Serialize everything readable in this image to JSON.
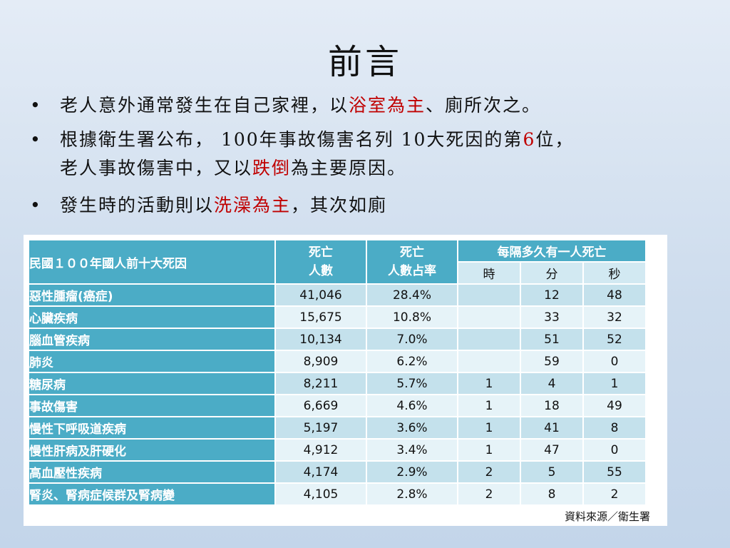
{
  "title": "前言",
  "bullets": {
    "bullet_symbol": "•",
    "b1": {
      "pre": "老人意外通常發生在自己家裡，以",
      "hl": "浴室為主",
      "post": "、廁所次之。"
    },
    "b2": {
      "pre": "根據衛生署公布， 100年事故傷害名列 10大死因的第",
      "hl": "6",
      "mid": "位，",
      "line2_pre": "老人事故傷害中，又以",
      "hl2": "跌倒",
      "post": "為主要原因。"
    },
    "b3": {
      "pre": "發生時的活動則以",
      "hl": "洗澡為主",
      "post": "，其次如廁"
    }
  },
  "table": {
    "header": {
      "cause": "民國１００年國人前十大死因",
      "deaths_line1": "死亡",
      "deaths_line2": "人數",
      "share_line1": "死亡",
      "share_line2": "人數占率",
      "interval": "每隔多久有一人死亡",
      "hour": "時",
      "minute": "分",
      "second": "秒"
    },
    "rows": [
      {
        "cause": "惡性腫瘤(癌症)",
        "deaths": "41,046",
        "share": "28.4%",
        "h": "",
        "m": "12",
        "s": "48"
      },
      {
        "cause": "心臟疾病",
        "deaths": "15,675",
        "share": "10.8%",
        "h": "",
        "m": "33",
        "s": "32"
      },
      {
        "cause": "腦血管疾病",
        "deaths": "10,134",
        "share": "7.0%",
        "h": "",
        "m": "51",
        "s": "52"
      },
      {
        "cause": "肺炎",
        "deaths": "8,909",
        "share": "6.2%",
        "h": "",
        "m": "59",
        "s": "0"
      },
      {
        "cause": "糖尿病",
        "deaths": "8,211",
        "share": "5.7%",
        "h": "1",
        "m": "4",
        "s": "1"
      },
      {
        "cause": "事故傷害",
        "deaths": "6,669",
        "share": "4.6%",
        "h": "1",
        "m": "18",
        "s": "49"
      },
      {
        "cause": "慢性下呼吸道疾病",
        "deaths": "5,197",
        "share": "3.6%",
        "h": "1",
        "m": "41",
        "s": "8"
      },
      {
        "cause": "慢性肝病及肝硬化",
        "deaths": "4,912",
        "share": "3.4%",
        "h": "1",
        "m": "47",
        "s": "0"
      },
      {
        "cause": "高血壓性疾病",
        "deaths": "4,174",
        "share": "2.9%",
        "h": "2",
        "m": "5",
        "s": "55"
      },
      {
        "cause": "腎炎、腎病症候群及腎病變",
        "deaths": "4,105",
        "share": "2.8%",
        "h": "2",
        "m": "8",
        "s": "2"
      }
    ],
    "source": "資料來源／衛生署"
  }
}
